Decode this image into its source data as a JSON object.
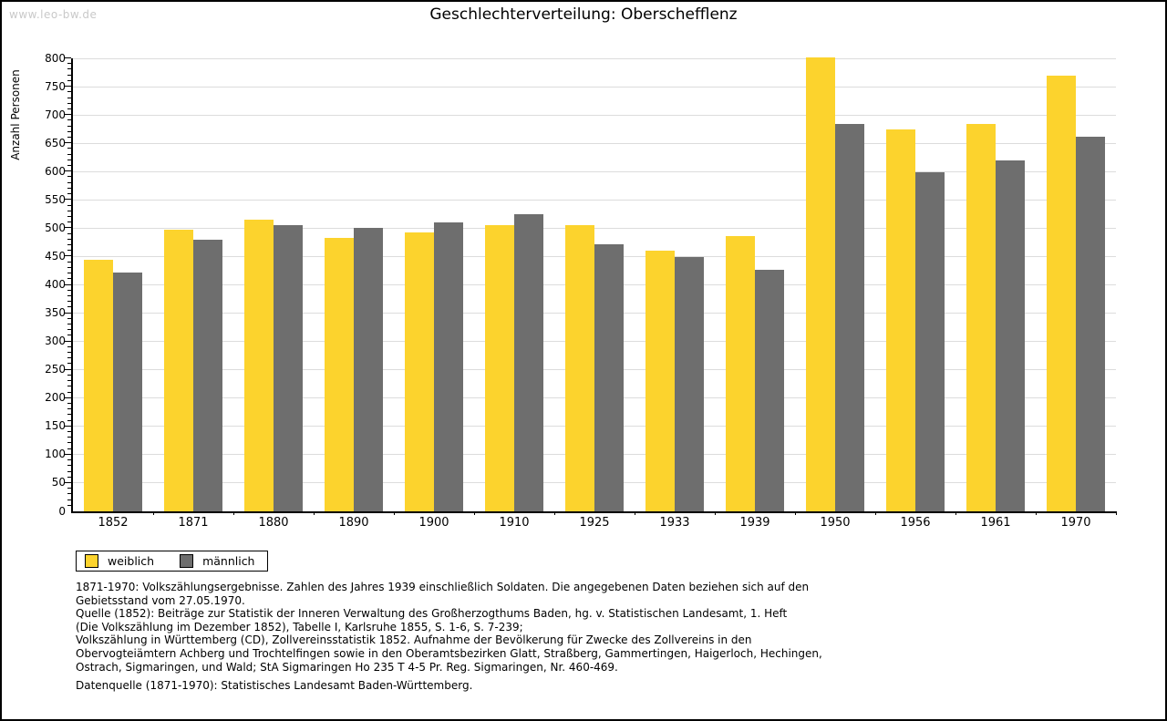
{
  "page": {
    "watermark": "www.leo-bw.de",
    "title": "Geschlechterverteilung: Oberschefflenz"
  },
  "chart_data": {
    "type": "bar",
    "title": "Geschlechterverteilung: Oberschefflenz",
    "xlabel": "",
    "ylabel": "Anzahl Personen",
    "categories": [
      "1852",
      "1871",
      "1880",
      "1890",
      "1900",
      "1910",
      "1925",
      "1933",
      "1939",
      "1950",
      "1956",
      "1961",
      "1970"
    ],
    "series": [
      {
        "name": "weiblich",
        "color": "#FCD32D",
        "values": [
          444,
          497,
          515,
          483,
          492,
          505,
          505,
          460,
          486,
          802,
          674,
          684,
          769
        ]
      },
      {
        "name": "männlich",
        "color": "#6E6E6E",
        "values": [
          421,
          479,
          505,
          500,
          510,
          525,
          471,
          449,
          426,
          684,
          599,
          620,
          661
        ]
      }
    ],
    "ylim": [
      0,
      800
    ],
    "ytick_step": 50,
    "yminor_step": 10,
    "grid": true,
    "legend_position": "bottom-left"
  },
  "legend": {
    "items": [
      {
        "label": "weiblich",
        "color": "#FCD32D"
      },
      {
        "label": "männlich",
        "color": "#6E6E6E"
      }
    ]
  },
  "footnotes": {
    "lines": [
      "1871-1970: Volkszählungsergebnisse. Zahlen des Jahres 1939 einschließlich Soldaten. Die angegebenen Daten beziehen sich auf den",
      "Gebietsstand vom 27.05.1970.",
      "Quelle (1852): Beiträge zur Statistik der Inneren Verwaltung des Großherzogthums Baden, hg. v. Statistischen Landesamt, 1. Heft",
      "(Die Volkszählung im Dezember 1852), Tabelle I, Karlsruhe 1855, S. 1-6, S. 7-239;",
      "Volkszählung in Württemberg (CD), Zollvereinsstatistik 1852. Aufnahme der Bevölkerung für Zwecke des Zollvereins in den",
      "Obervogteiämtern Achberg und Trochtelfingen sowie in den Oberamtsbezirken Glatt, Straßberg, Gammertingen, Haigerloch, Hechingen,",
      "Ostrach, Sigmaringen, und Wald; StA Sigmaringen Ho 235 T 4-5 Pr. Reg. Sigmaringen, Nr. 460-469."
    ],
    "datasource": "Datenquelle (1871-1970): Statistisches Landesamt Baden-Württemberg."
  },
  "colors": {
    "bar_female": "#FCD32D",
    "bar_male": "#6E6E6E",
    "gridline": "#DCDCDC",
    "axis": "#000000",
    "watermark": "#C9C9C9"
  }
}
